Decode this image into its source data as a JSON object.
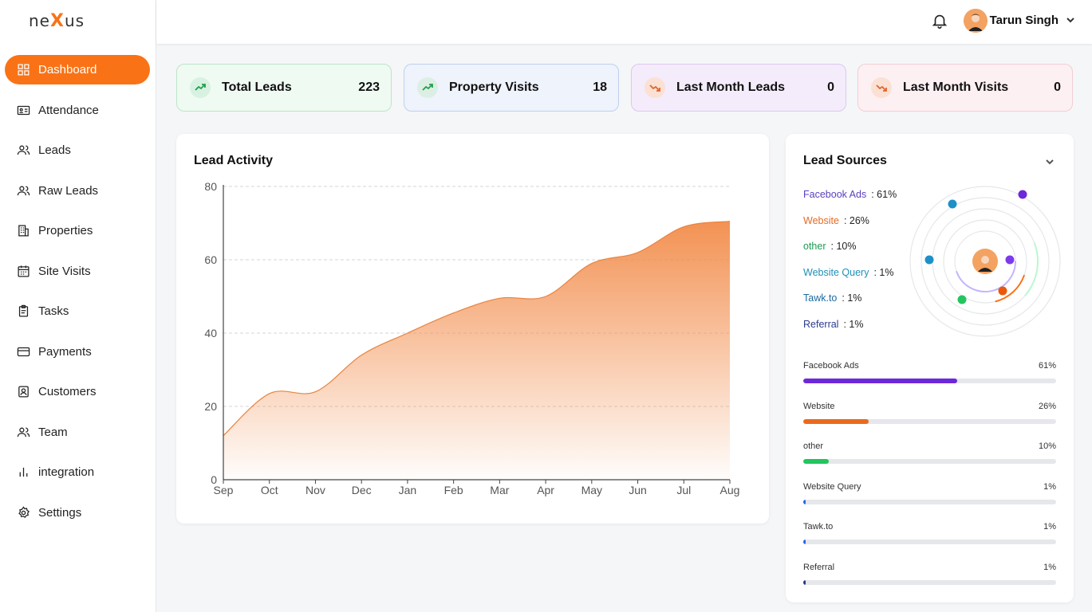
{
  "brand": {
    "logo_pre": "ne",
    "logo_x": "X",
    "logo_post": "us"
  },
  "sidebar": {
    "items": [
      {
        "label": "Dashboard",
        "icon": "grid-icon",
        "active": true
      },
      {
        "label": "Attendance",
        "icon": "id-card-icon"
      },
      {
        "label": "Leads",
        "icon": "users-icon"
      },
      {
        "label": "Raw Leads",
        "icon": "users-icon"
      },
      {
        "label": "Properties",
        "icon": "building-icon"
      },
      {
        "label": "Site Visits",
        "icon": "calendar-icon"
      },
      {
        "label": "Tasks",
        "icon": "clipboard-icon"
      },
      {
        "label": "Payments",
        "icon": "credit-card-icon"
      },
      {
        "label": "Customers",
        "icon": "contact-icon"
      },
      {
        "label": "Team",
        "icon": "users-icon"
      },
      {
        "label": "integration",
        "icon": "bar-chart-icon"
      },
      {
        "label": "Settings",
        "icon": "gear-icon"
      }
    ]
  },
  "header": {
    "user_name": "Tarun Singh"
  },
  "stats": [
    {
      "label": "Total Leads",
      "value": "223",
      "trend": "up"
    },
    {
      "label": "Property Visits",
      "value": "18",
      "trend": "up"
    },
    {
      "label": "Last Month Leads",
      "value": "0",
      "trend": "down"
    },
    {
      "label": "Last Month Visits",
      "value": "0",
      "trend": "down"
    }
  ],
  "activity": {
    "title": "Lead Activity"
  },
  "chart_data": {
    "type": "area",
    "title": "Lead Activity",
    "categories": [
      "Sep",
      "Oct",
      "Nov",
      "Dec",
      "Jan",
      "Feb",
      "Mar",
      "Apr",
      "May",
      "Jun",
      "Jul",
      "Aug"
    ],
    "values": [
      12,
      23.5,
      24,
      34,
      40,
      45.5,
      49.5,
      50,
      59,
      62,
      69,
      70.5
    ],
    "yticks": [
      0,
      20,
      40,
      60,
      80
    ],
    "ylim": [
      0,
      80
    ],
    "grid": true,
    "color": "#f28c4a"
  },
  "sources": {
    "title": "Lead Sources",
    "items": [
      {
        "name": "Facebook Ads",
        "pct": "61%",
        "value": 61,
        "color": "#6d28d9",
        "textColor": "#5b3fbf"
      },
      {
        "name": "Website",
        "pct": "26%",
        "value": 26,
        "color": "#ea6a1c",
        "textColor": "#e76a24"
      },
      {
        "name": "other",
        "pct": "10%",
        "value": 10,
        "color": "#22c55e",
        "textColor": "#1f9a52"
      },
      {
        "name": "Website Query",
        "pct": "1%",
        "value": 1,
        "color": "#2563eb",
        "textColor": "#1f8fb8"
      },
      {
        "name": "Tawk.to",
        "pct": "1%",
        "value": 1,
        "color": "#2563eb",
        "textColor": "#1e6a9e"
      },
      {
        "name": "Referral",
        "pct": "1%",
        "value": 1,
        "color": "#1e3a8a",
        "textColor": "#2a3a8f"
      }
    ]
  }
}
